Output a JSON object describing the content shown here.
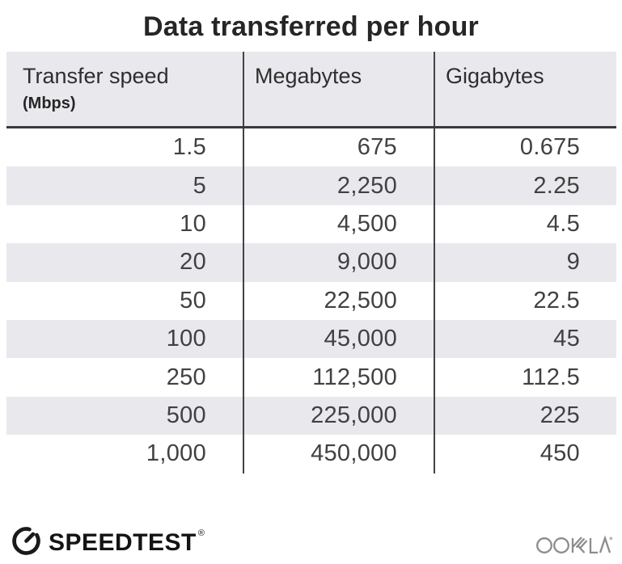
{
  "title": "Data transferred per hour",
  "table": {
    "headers": [
      {
        "label": "Transfer speed",
        "sub": "(Mbps)"
      },
      {
        "label": "Megabytes"
      },
      {
        "label": "Gigabytes"
      }
    ],
    "rows": [
      [
        "1.5",
        "675",
        "0.675"
      ],
      [
        "5",
        "2,250",
        "2.25"
      ],
      [
        "10",
        "4,500",
        "4.5"
      ],
      [
        "20",
        "9,000",
        "9"
      ],
      [
        "50",
        "22,500",
        "22.5"
      ],
      [
        "100",
        "45,000",
        "45"
      ],
      [
        "250",
        "112,500",
        "112.5"
      ],
      [
        "500",
        "225,000",
        "225"
      ],
      [
        "1,000",
        "450,000",
        "450"
      ]
    ]
  },
  "footer": {
    "speedtest_label": "SPEEDTEST",
    "speedtest_reg": "®",
    "ookla_label": "OOKLA",
    "icons": [
      "speedometer-gauge-icon",
      "ookla-wordmark-logo"
    ]
  },
  "colors": {
    "background": "#ffffff",
    "row_stripe": "#e9e9ed",
    "header_background": "#e9e9ed",
    "divider_dark": "#434343",
    "header_underline": "#3a3a3a",
    "title_text": "#262626",
    "body_text": "#414141",
    "speedtest_logo": "#141414",
    "ookla_logo": "#8c8c8c"
  },
  "chart_data": {
    "type": "table",
    "title": "Data transferred per hour",
    "columns": [
      "Transfer speed (Mbps)",
      "Megabytes",
      "Gigabytes"
    ],
    "rows": [
      [
        1.5,
        675,
        0.675
      ],
      [
        5,
        2250,
        2.25
      ],
      [
        10,
        4500,
        4.5
      ],
      [
        20,
        9000,
        9
      ],
      [
        50,
        22500,
        22.5
      ],
      [
        100,
        45000,
        45
      ],
      [
        250,
        112500,
        112.5
      ],
      [
        500,
        225000,
        225
      ],
      [
        1000,
        450000,
        450
      ]
    ],
    "layout_hints": {
      "striped_rows": "even data rows shaded",
      "column_alignment": [
        "right",
        "right",
        "right"
      ],
      "column_dividers": true,
      "header_underline": true
    }
  }
}
